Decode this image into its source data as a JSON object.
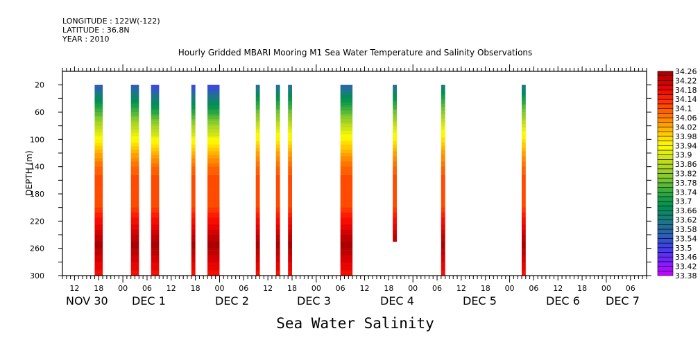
{
  "header": {
    "longitude": "LONGITUDE : 122W(-122)",
    "latitude": "LATITUDE : 36.8N",
    "year": "YEAR : 2010"
  },
  "chart_data": {
    "type": "heatmap",
    "title": "Hourly Gridded MBARI Mooring M1 Sea Water Temperature and Salinity Observations",
    "xlabel": "Sea Water Salinity",
    "ylabel": "DEPTH (m)",
    "ylim": [
      0,
      300
    ],
    "y_ticks": [
      20,
      60,
      100,
      140,
      180,
      220,
      260,
      300
    ],
    "x_range_hours_from_nov30_00": [
      9,
      154
    ],
    "hour_tick_labels": [
      "12",
      "18",
      "00",
      "06",
      "12",
      "18",
      "00",
      "06",
      "12",
      "18",
      "00",
      "06",
      "12",
      "18",
      "00",
      "06",
      "12",
      "18",
      "00",
      "06",
      "12",
      "18",
      "00",
      "06",
      "12",
      "18",
      "00",
      "06"
    ],
    "day_labels": [
      "NOV 30",
      "DEC  1",
      "DEC  2",
      "DEC  3",
      "DEC  4",
      "DEC  5",
      "DEC  6",
      "DEC  7"
    ],
    "colorbar": {
      "min": 33.38,
      "max": 34.26,
      "step": 0.02,
      "labels": [
        "34.26",
        "34.22",
        "34.18",
        "34.14",
        "34.1",
        "34.06",
        "34.02",
        "33.98",
        "33.94",
        "33.9",
        "33.86",
        "33.82",
        "33.78",
        "33.74",
        "33.7",
        "33.66",
        "33.62",
        "33.58",
        "33.54",
        "33.5",
        "33.46",
        "33.42",
        "33.38"
      ],
      "color_stops": [
        [
          33.38,
          "#cc00ff"
        ],
        [
          33.44,
          "#7a1fff"
        ],
        [
          33.5,
          "#3f3ff0"
        ],
        [
          33.56,
          "#2a60b0"
        ],
        [
          33.62,
          "#1a7a80"
        ],
        [
          33.68,
          "#009050"
        ],
        [
          33.74,
          "#30a840"
        ],
        [
          33.8,
          "#80c830"
        ],
        [
          33.88,
          "#c8e018"
        ],
        [
          33.94,
          "#ffff00"
        ],
        [
          34.0,
          "#ffc000"
        ],
        [
          34.06,
          "#ff8000"
        ],
        [
          34.12,
          "#ff4000"
        ],
        [
          34.16,
          "#ff1000"
        ],
        [
          34.2,
          "#e00000"
        ],
        [
          34.26,
          "#a00000"
        ]
      ]
    },
    "profile_depth_salinity": [
      [
        20,
        33.54
      ],
      [
        40,
        33.66
      ],
      [
        60,
        33.76
      ],
      [
        80,
        33.86
      ],
      [
        100,
        33.94
      ],
      [
        120,
        34.02
      ],
      [
        140,
        34.08
      ],
      [
        160,
        34.11
      ],
      [
        200,
        34.12
      ],
      [
        220,
        34.17
      ],
      [
        240,
        34.22
      ],
      [
        255,
        34.25
      ],
      [
        280,
        34.2
      ],
      [
        300,
        34.17
      ]
    ],
    "observation_blocks": [
      {
        "start_hour": 17,
        "end_hour": 19,
        "max_depth": 300,
        "surface_offset": 0.0
      },
      {
        "start_hour": 26,
        "end_hour": 28,
        "max_depth": 300,
        "surface_offset": 0.0
      },
      {
        "start_hour": 31,
        "end_hour": 33,
        "max_depth": 300,
        "surface_offset": -0.04
      },
      {
        "start_hour": 41,
        "end_hour": 42,
        "max_depth": 300,
        "surface_offset": -0.04
      },
      {
        "start_hour": 45,
        "end_hour": 48,
        "max_depth": 300,
        "surface_offset": -0.04
      },
      {
        "start_hour": 57,
        "end_hour": 58,
        "max_depth": 300,
        "surface_offset": 0.04
      },
      {
        "start_hour": 62,
        "end_hour": 63,
        "max_depth": 300,
        "surface_offset": 0.04
      },
      {
        "start_hour": 65,
        "end_hour": 66,
        "max_depth": 300,
        "surface_offset": 0.04
      },
      {
        "start_hour": 78,
        "end_hour": 81,
        "max_depth": 300,
        "surface_offset": 0.02
      },
      {
        "start_hour": 91,
        "end_hour": 92,
        "max_depth": 250,
        "surface_offset": 0.04
      },
      {
        "start_hour": 103,
        "end_hour": 104,
        "max_depth": 300,
        "surface_offset": 0.08
      },
      {
        "start_hour": 123,
        "end_hour": 124,
        "max_depth": 300,
        "surface_offset": 0.06
      }
    ]
  }
}
